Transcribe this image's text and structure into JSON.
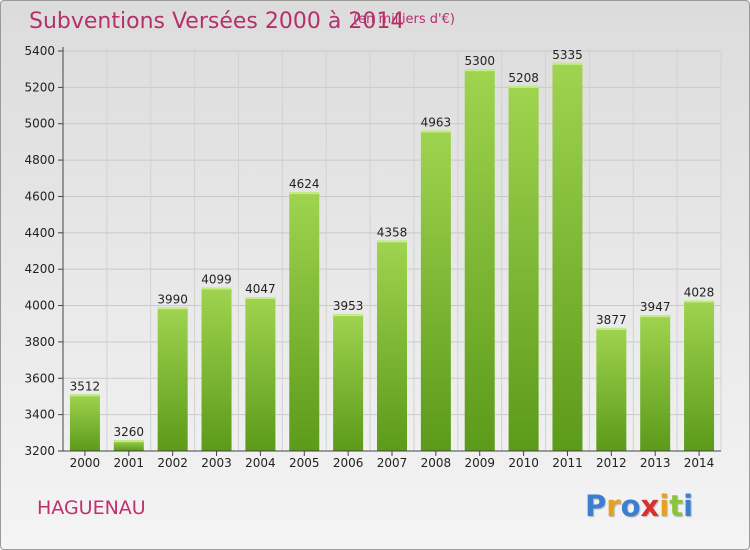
{
  "header": {
    "title": "Subventions Versées 2000 à 2014",
    "unit": "(en milliers d'€)"
  },
  "footer": {
    "commune": "HAGUENAU",
    "logo": "Proxiti",
    "logo_colors": [
      "#3a7fd0",
      "#e8a020",
      "#3a7fd0",
      "#d83030",
      "#e8a020",
      "#8ac43a",
      "#3a7fd0"
    ]
  },
  "colors": {
    "bar_light": "#9fd44f",
    "bar_dark": "#5c9a1a",
    "title": "#b5306a"
  },
  "chart_data": {
    "type": "bar",
    "title": "Subventions Versées 2000 à 2014",
    "subtitle": "(en milliers d'€)",
    "categories": [
      "2000",
      "2001",
      "2002",
      "2003",
      "2004",
      "2005",
      "2006",
      "2007",
      "2008",
      "2009",
      "2010",
      "2011",
      "2012",
      "2013",
      "2014"
    ],
    "values": [
      3512,
      3260,
      3990,
      4099,
      4047,
      4624,
      3953,
      4358,
      4963,
      5300,
      5208,
      5335,
      3877,
      3947,
      4028
    ],
    "value_labels": [
      "3512",
      "3260",
      "3990",
      "4099",
      "4047",
      "4624",
      "3953",
      "4358",
      "4963",
      "5300",
      "5208",
      "5335",
      "3877",
      "3947",
      "4028"
    ],
    "y_ticks": [
      3200,
      3400,
      3600,
      3800,
      4000,
      4200,
      4400,
      4600,
      4800,
      5000,
      5200,
      5400
    ],
    "ylim": [
      3200,
      5400
    ],
    "grid": true,
    "legend": "none"
  }
}
